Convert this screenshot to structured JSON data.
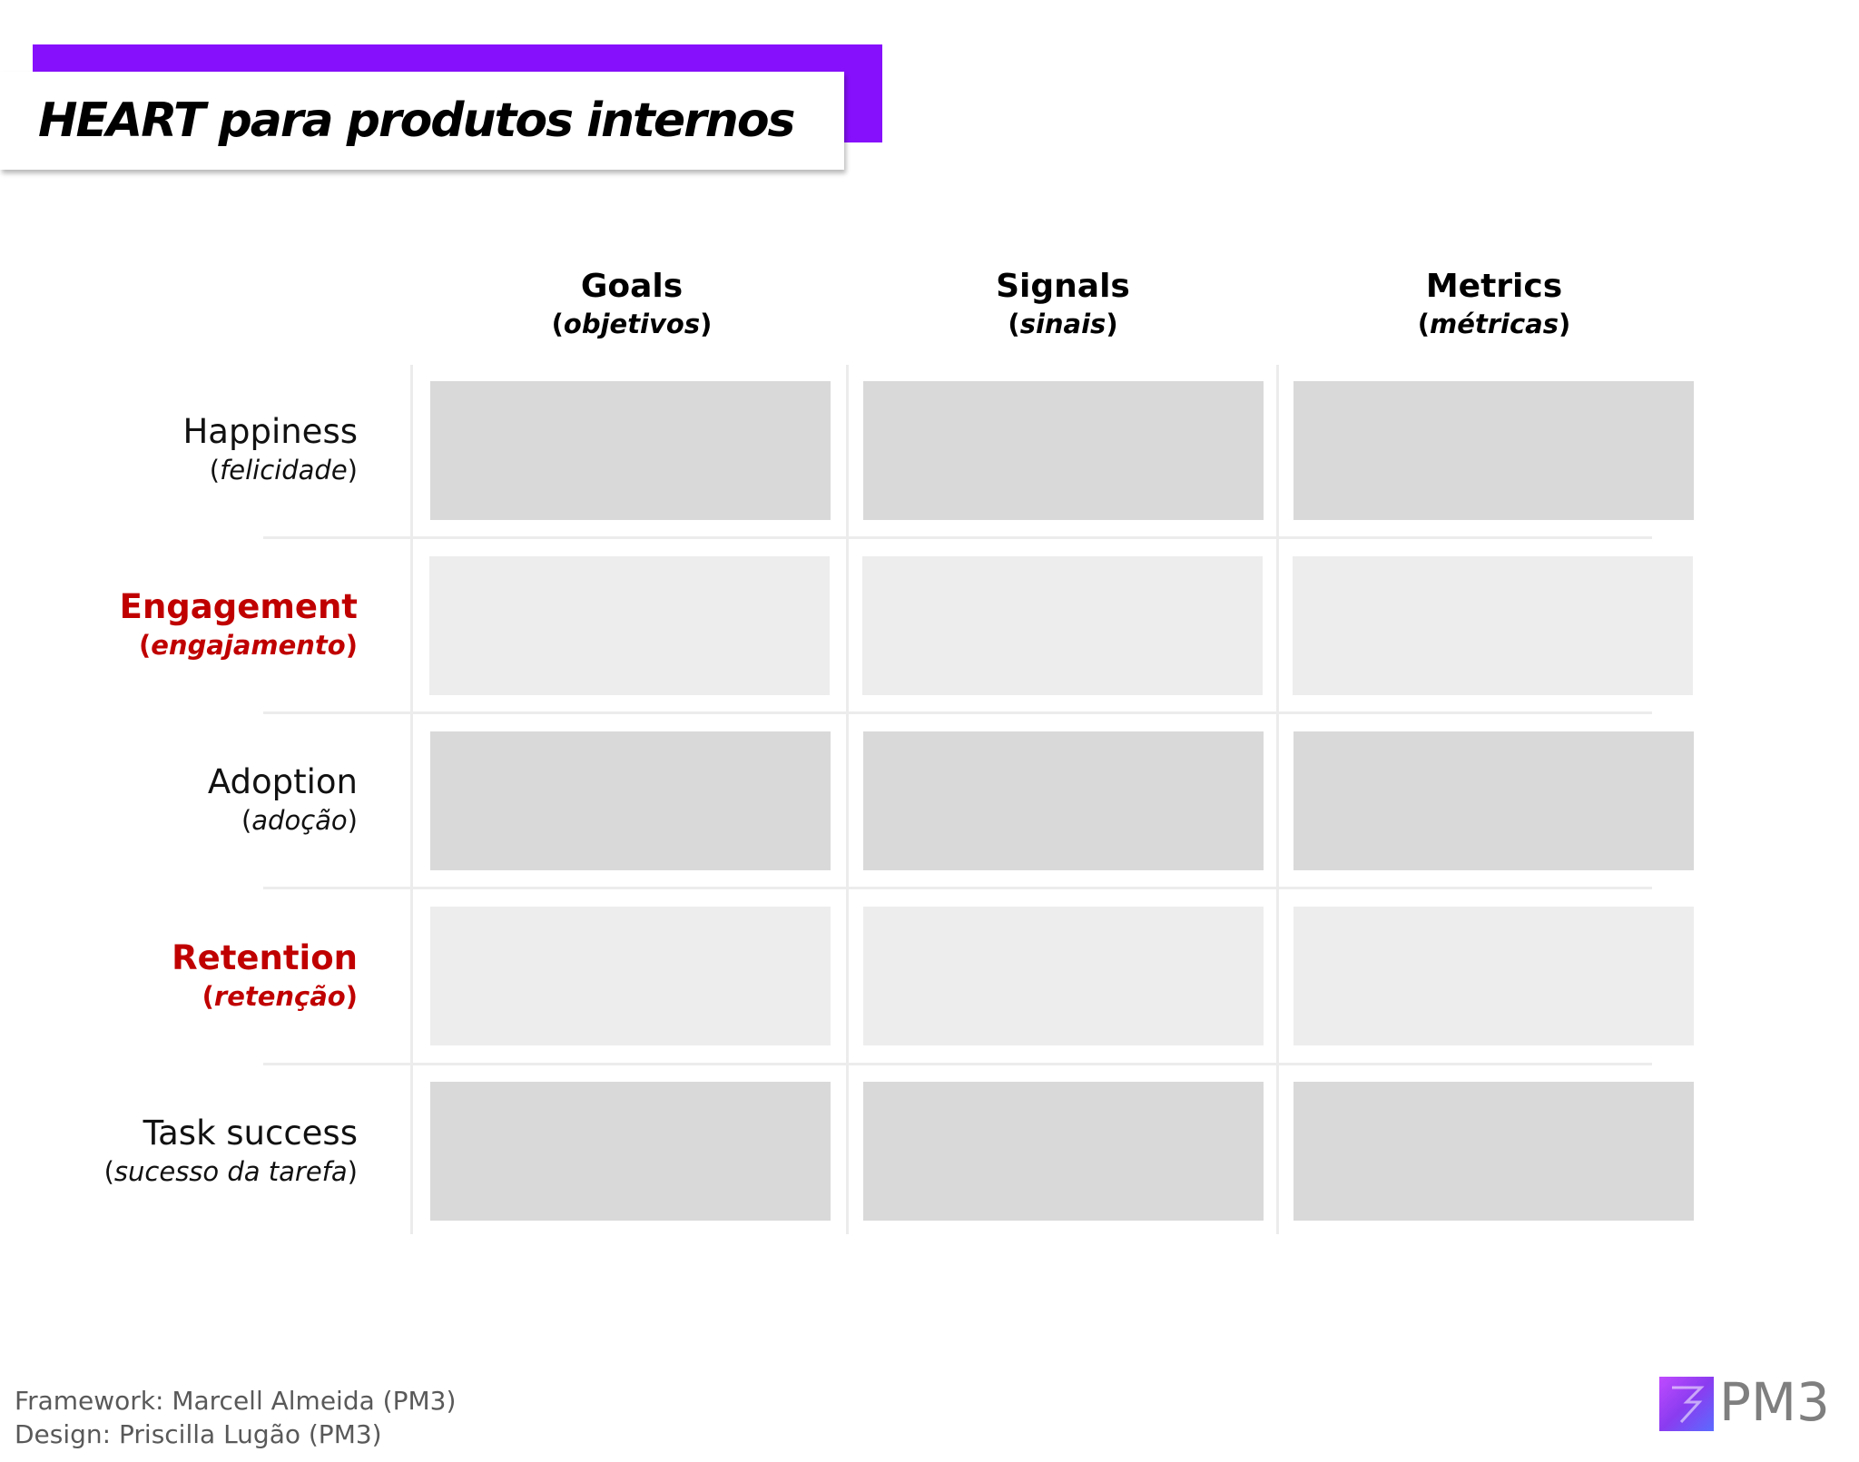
{
  "title": "HEART para produtos internos",
  "columns": [
    {
      "label": "Goals",
      "translation": "objetivos"
    },
    {
      "label": "Signals",
      "translation": "sinais"
    },
    {
      "label": "Metrics",
      "translation": "métricas"
    }
  ],
  "rows": [
    {
      "label": "Happiness",
      "translation": "felicidade",
      "highlighted": false
    },
    {
      "label": "Engagement",
      "translation": "engajamento",
      "highlighted": true
    },
    {
      "label": "Adoption",
      "translation": "adoção",
      "highlighted": false
    },
    {
      "label": "Retention",
      "translation": "retenção",
      "highlighted": true
    },
    {
      "label": "Task success",
      "translation": "sucesso da tarefa",
      "highlighted": false
    }
  ],
  "credits": {
    "framework": "Framework: Marcell Almeida (PM3)",
    "design": "Design: Priscilla Lugão (PM3)"
  },
  "logo": {
    "text": "PM3",
    "icon": "pm3-logo-mark-icon"
  },
  "colors": {
    "accent": "#8710fc",
    "highlight_text": "#c00000",
    "cell_dark": "#d9d9d9",
    "cell_light": "#ededed"
  }
}
